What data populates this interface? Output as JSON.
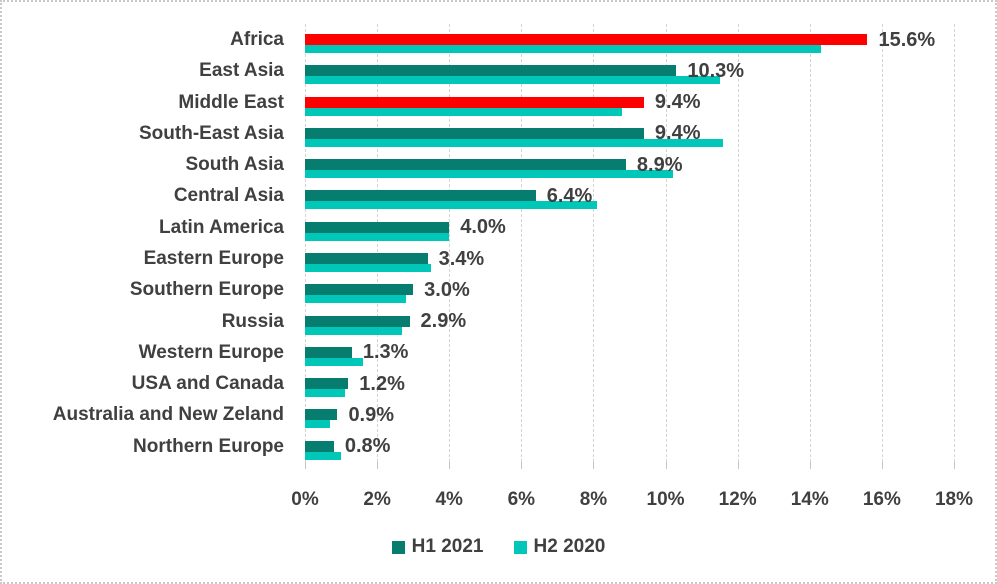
{
  "chart_data": {
    "type": "bar",
    "orientation": "horizontal",
    "title": "",
    "categories": [
      "Africa",
      "East Asia",
      "Middle East",
      "South-East Asia",
      "South Asia",
      "Central Asia",
      "Latin America",
      "Eastern Europe",
      "Southern Europe",
      "Russia",
      "Western Europe",
      "USA and Canada",
      "Australia and New Zeland",
      "Northern Europe"
    ],
    "series": [
      {
        "name": "H1 2021",
        "color": "#077d6f",
        "values": [
          15.6,
          10.3,
          9.4,
          9.4,
          8.9,
          6.4,
          4.0,
          3.4,
          3.0,
          2.9,
          1.3,
          1.2,
          0.9,
          0.8
        ]
      },
      {
        "name": "H2 2020",
        "color": "#00c7b8",
        "values": [
          14.3,
          11.5,
          8.8,
          11.6,
          10.2,
          8.1,
          4.0,
          3.5,
          2.8,
          2.7,
          1.6,
          1.1,
          0.7,
          1.0
        ]
      }
    ],
    "data_labels": [
      "15.6%",
      "10.3%",
      "9.4%",
      "9.4%",
      "8.9%",
      "6.4%",
      "4.0%",
      "3.4%",
      "3.0%",
      "2.9%",
      "1.3%",
      "1.2%",
      "0.9%",
      "0.8%"
    ],
    "highlighted_categories": [
      "Africa",
      "Middle East"
    ],
    "highlight_color": "#ff0000",
    "xlim": [
      0,
      18
    ],
    "x_tick_values": [
      0,
      2,
      4,
      6,
      8,
      10,
      12,
      14,
      16,
      18
    ],
    "x_tick_labels": [
      "0%",
      "2%",
      "4%",
      "6%",
      "8%",
      "10%",
      "12%",
      "14%",
      "16%",
      "18%"
    ],
    "gridlines": true,
    "legend_position": "bottom"
  },
  "colors": {
    "text": "#404040",
    "gridline": "#d4d4d4",
    "border": "#c9c9c9",
    "background": "#ffffff"
  }
}
